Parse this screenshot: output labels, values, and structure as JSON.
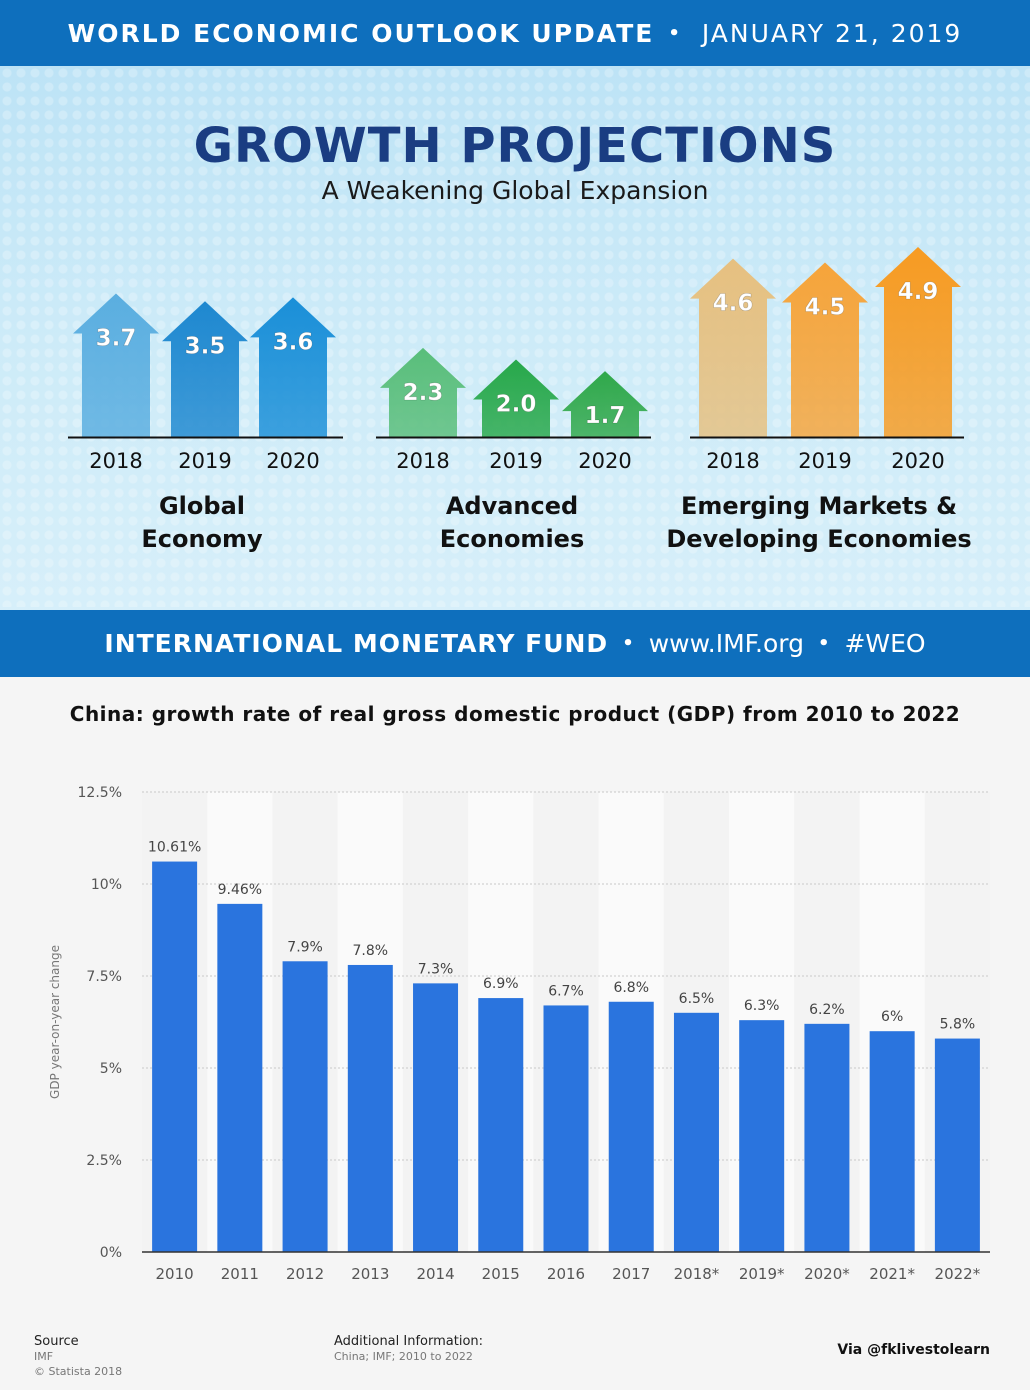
{
  "header": {
    "title": "WORLD ECONOMIC OUTLOOK UPDATE",
    "separator": "•",
    "date": "JANUARY 21, 2019"
  },
  "infographic": {
    "title": "GROWTH PROJECTIONS",
    "subtitle": "A Weakening Global Expansion",
    "groups": [
      {
        "label_line1": "Global",
        "label_line2": "Economy",
        "colors": [
          "#5aaee0",
          "#1e88d0",
          "#1a8fd8"
        ],
        "items": [
          {
            "year": "2018",
            "value": 3.7,
            "label": "3.7"
          },
          {
            "year": "2019",
            "value": 3.5,
            "label": "3.5"
          },
          {
            "year": "2020",
            "value": 3.6,
            "label": "3.6"
          }
        ]
      },
      {
        "label_line1": "Advanced",
        "label_line2": "Economies",
        "colors": [
          "#59be7a",
          "#27a84a",
          "#2fa84a"
        ],
        "items": [
          {
            "year": "2018",
            "value": 2.3,
            "label": "2.3"
          },
          {
            "year": "2019",
            "value": 2.0,
            "label": "2.0"
          },
          {
            "year": "2020",
            "value": 1.7,
            "label": "1.7"
          }
        ]
      },
      {
        "label_line1": "Emerging Markets &",
        "label_line2": "Developing Economies",
        "colors": [
          "#e6c080",
          "#f6a43a",
          "#f79b22"
        ],
        "items": [
          {
            "year": "2018",
            "value": 4.6,
            "label": "4.6"
          },
          {
            "year": "2019",
            "value": 4.5,
            "label": "4.5"
          },
          {
            "year": "2020",
            "value": 4.9,
            "label": "4.9"
          }
        ]
      }
    ]
  },
  "footer_band": {
    "org": "INTERNATIONAL MONETARY FUND",
    "separator": "•",
    "url": "www.IMF.org",
    "hashtag": "#WEO"
  },
  "chart_data": {
    "type": "bar",
    "title": "China: growth rate of real gross domestic product (GDP) from 2010 to 2022",
    "ylabel": "GDP year-on-year change",
    "xlabel": "",
    "categories": [
      "2010",
      "2011",
      "2012",
      "2013",
      "2014",
      "2015",
      "2016",
      "2017",
      "2018*",
      "2019*",
      "2020*",
      "2021*",
      "2022*"
    ],
    "values": [
      10.61,
      9.46,
      7.9,
      7.8,
      7.3,
      6.9,
      6.7,
      6.8,
      6.5,
      6.3,
      6.2,
      6.0,
      5.8
    ],
    "value_labels": [
      "10.61%",
      "9.46%",
      "7.9%",
      "7.8%",
      "7.3%",
      "6.9%",
      "6.7%",
      "6.8%",
      "6.5%",
      "6.3%",
      "6.2%",
      "6%",
      "5.8%"
    ],
    "ylim": [
      0,
      12.5
    ],
    "yticks": [
      0,
      2.5,
      5,
      7.5,
      10,
      12.5
    ],
    "ytick_labels": [
      "0%",
      "2.5%",
      "5%",
      "7.5%",
      "10%",
      "12.5%"
    ],
    "grid": true,
    "bar_color": "#2a74de"
  },
  "source": {
    "heading": "Source",
    "line1": "IMF",
    "line2": "© Statista 2018"
  },
  "additional_info": {
    "heading": "Additional Information:",
    "text": "China; IMF; 2010 to 2022"
  },
  "credit": "Via @fklivestolearn"
}
